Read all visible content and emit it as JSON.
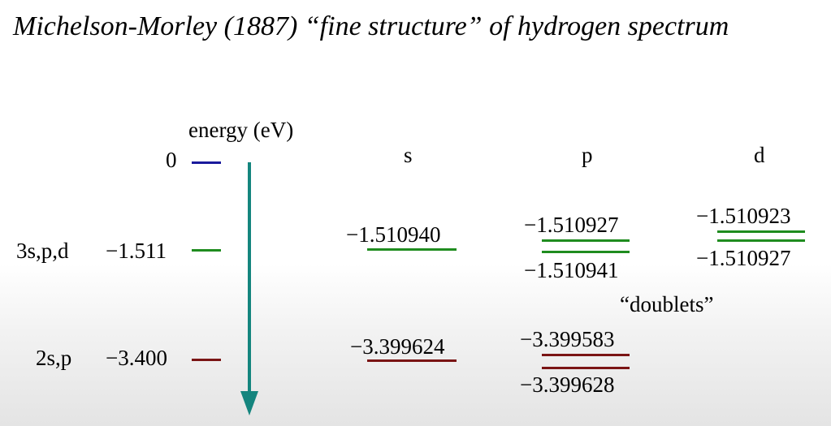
{
  "title": "Michelson-Morley (1887) “fine structure” of hydrogen spectrum",
  "energy_axis": {
    "label": "energy (eV)",
    "levels": [
      {
        "name": "",
        "value": "0",
        "color": "#1a1a9c"
      },
      {
        "name": "3s,p,d",
        "value": "−1.511",
        "color": "#1f8c1f"
      },
      {
        "name": "2s,p",
        "value": "−3.400",
        "color": "#7a1414"
      }
    ]
  },
  "columns": {
    "s": {
      "header": "s",
      "n3": [
        "−1.510940"
      ],
      "n2": [
        "−3.399624"
      ]
    },
    "p": {
      "header": "p",
      "n3": [
        "−1.510927",
        "−1.510941"
      ],
      "n2": [
        "−3.399583",
        "−3.399628"
      ]
    },
    "d": {
      "header": "d",
      "n3": [
        "−1.510923",
        "−1.510927"
      ]
    }
  },
  "doublets_label": "“doublets”",
  "colors": {
    "n1": "#1a1a9c",
    "n3": "#1f8c1f",
    "n2": "#7a1414",
    "arrow": "#14857e"
  }
}
